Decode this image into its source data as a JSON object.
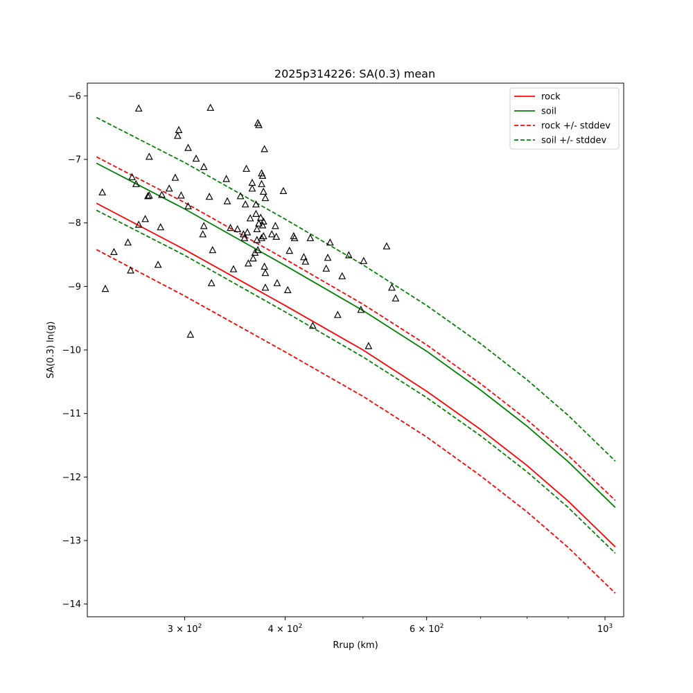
{
  "chart_data": {
    "type": "line",
    "title": "2025p314226: SA(0.3) mean",
    "xlabel": "Rrup (km)",
    "ylabel": "SA(0.3) ln(g)",
    "xscale": "log",
    "xlim": [
      227,
      1055
    ],
    "ylim": [
      -14.2,
      -5.8
    ],
    "x_ticks_major": [
      {
        "value": 300,
        "base": "3 × 10",
        "exp": "2"
      },
      {
        "value": 400,
        "base": "4 × 10",
        "exp": "2"
      },
      {
        "value": 600,
        "base": "6 × 10",
        "exp": "2"
      },
      {
        "value": 1000,
        "base": "10",
        "exp": "3"
      }
    ],
    "x_ticks_minor": [
      500,
      700,
      800,
      900
    ],
    "y_ticks": [
      {
        "value": -14,
        "label": "−14"
      },
      {
        "value": -13,
        "label": "−13"
      },
      {
        "value": -12,
        "label": "−12"
      },
      {
        "value": -11,
        "label": "−11"
      },
      {
        "value": -10,
        "label": "−10"
      },
      {
        "value": -9,
        "label": "−9"
      },
      {
        "value": -8,
        "label": "−8"
      },
      {
        "value": -7,
        "label": "−7"
      },
      {
        "value": -6,
        "label": "−6"
      }
    ],
    "grid": false,
    "legend": {
      "position": "top-right",
      "entries": [
        {
          "label": "rock",
          "color": "#ff0000",
          "style": "solid"
        },
        {
          "label": "soil",
          "color": "#008000",
          "style": "solid"
        },
        {
          "label": "rock +/- stddev",
          "color": "#ff0000",
          "style": "dashed"
        },
        {
          "label": "soil +/- stddev",
          "color": "#008000",
          "style": "dashed"
        }
      ]
    },
    "series": [
      {
        "name": "rock",
        "color": "#ff0000",
        "style": "solid",
        "x": [
          233,
          300,
          400,
          500,
          600,
          700,
          800,
          900,
          1030
        ],
        "y": [
          -7.69,
          -8.42,
          -9.3,
          -10.0,
          -10.65,
          -11.25,
          -11.82,
          -12.38,
          -13.1
        ]
      },
      {
        "name": "soil",
        "color": "#008000",
        "style": "solid",
        "x": [
          233,
          300,
          400,
          500,
          600,
          700,
          800,
          900,
          1030
        ],
        "y": [
          -7.06,
          -7.78,
          -8.67,
          -9.38,
          -10.02,
          -10.63,
          -11.2,
          -11.76,
          -12.48
        ]
      },
      {
        "name": "rock +/- stddev",
        "group": "rock-upper",
        "color": "#ff0000",
        "style": "dashed",
        "x": [
          233,
          300,
          400,
          500,
          600,
          700,
          800,
          900,
          1030
        ],
        "y": [
          -6.96,
          -7.68,
          -8.57,
          -9.28,
          -9.92,
          -10.53,
          -11.1,
          -11.66,
          -12.37
        ]
      },
      {
        "name": "rock +/- stddev",
        "group": "rock-lower",
        "color": "#ff0000",
        "style": "dashed",
        "x": [
          233,
          300,
          400,
          500,
          600,
          700,
          800,
          900,
          1030
        ],
        "y": [
          -8.42,
          -9.15,
          -10.03,
          -10.73,
          -11.37,
          -11.98,
          -12.55,
          -13.11,
          -13.83
        ]
      },
      {
        "name": "soil +/- stddev",
        "group": "soil-upper",
        "color": "#008000",
        "style": "dashed",
        "x": [
          233,
          300,
          400,
          500,
          600,
          700,
          800,
          900,
          1030
        ],
        "y": [
          -6.34,
          -7.05,
          -7.94,
          -8.66,
          -9.3,
          -9.9,
          -10.47,
          -11.03,
          -11.75
        ]
      },
      {
        "name": "soil +/- stddev",
        "group": "soil-lower",
        "color": "#008000",
        "style": "dashed",
        "x": [
          233,
          300,
          400,
          500,
          600,
          700,
          800,
          900,
          1030
        ],
        "y": [
          -7.8,
          -8.51,
          -9.4,
          -10.11,
          -10.75,
          -11.35,
          -11.92,
          -12.48,
          -13.2
        ]
      }
    ],
    "observations": {
      "marker": "open-triangle",
      "color": "#000000",
      "points": [
        [
          237,
          -7.52
        ],
        [
          239,
          -9.04
        ],
        [
          245,
          -8.46
        ],
        [
          255,
          -8.31
        ],
        [
          257,
          -8.75
        ],
        [
          258,
          -7.28
        ],
        [
          261,
          -7.39
        ],
        [
          263,
          -8.03
        ],
        [
          263,
          -6.2
        ],
        [
          268,
          -7.94
        ],
        [
          270,
          -7.58
        ],
        [
          271,
          -6.96
        ],
        [
          271,
          -7.57
        ],
        [
          278,
          -8.66
        ],
        [
          280,
          -8.07
        ],
        [
          281,
          -7.56
        ],
        [
          287,
          -7.46
        ],
        [
          292,
          -7.29
        ],
        [
          294,
          -6.63
        ],
        [
          295,
          -6.54
        ],
        [
          297,
          -7.57
        ],
        [
          303,
          -6.82
        ],
        [
          303,
          -7.74
        ],
        [
          305,
          -9.76
        ],
        [
          310,
          -6.99
        ],
        [
          316,
          -8.18
        ],
        [
          317,
          -8.05
        ],
        [
          317,
          -7.12
        ],
        [
          322,
          -7.59
        ],
        [
          323,
          -6.19
        ],
        [
          324,
          -8.95
        ],
        [
          325,
          -8.43
        ],
        [
          338,
          -7.31
        ],
        [
          339,
          -7.66
        ],
        [
          342,
          -8.08
        ],
        [
          345,
          -8.73
        ],
        [
          349,
          -8.1
        ],
        [
          352,
          -7.58
        ],
        [
          355,
          -8.18
        ],
        [
          356,
          -8.24
        ],
        [
          357,
          -7.71
        ],
        [
          358,
          -7.15
        ],
        [
          359,
          -8.15
        ],
        [
          360,
          -8.64
        ],
        [
          362,
          -7.93
        ],
        [
          364,
          -7.37
        ],
        [
          364,
          -7.46
        ],
        [
          365,
          -8.56
        ],
        [
          367,
          -8.47
        ],
        [
          368,
          -7.71
        ],
        [
          368,
          -7.86
        ],
        [
          369,
          -8.27
        ],
        [
          369,
          -8.1
        ],
        [
          370,
          -6.43
        ],
        [
          370,
          -8.43
        ],
        [
          371,
          -8.01
        ],
        [
          371,
          -6.46
        ],
        [
          373,
          -7.92
        ],
        [
          374,
          -8.24
        ],
        [
          374,
          -7.22
        ],
        [
          374,
          -7.39
        ],
        [
          375,
          -7.26
        ],
        [
          375,
          -8.04
        ],
        [
          376,
          -7.98
        ],
        [
          376,
          -8.21
        ],
        [
          376,
          -7.51
        ],
        [
          377,
          -6.84
        ],
        [
          377,
          -8.69
        ],
        [
          378,
          -9.02
        ],
        [
          378,
          -7.61
        ],
        [
          378,
          -8.79
        ],
        [
          385,
          -8.18
        ],
        [
          389,
          -8.05
        ],
        [
          390,
          -8.22
        ],
        [
          391,
          -8.95
        ],
        [
          398,
          -7.5
        ],
        [
          403,
          -9.06
        ],
        [
          405,
          -8.44
        ],
        [
          410,
          -8.21
        ],
        [
          411,
          -8.24
        ],
        [
          422,
          -8.54
        ],
        [
          424,
          -8.61
        ],
        [
          430,
          -8.24
        ],
        [
          433,
          -9.62
        ],
        [
          450,
          -8.72
        ],
        [
          452,
          -8.55
        ],
        [
          455,
          -8.31
        ],
        [
          465,
          -9.45
        ],
        [
          471,
          -8.84
        ],
        [
          480,
          -8.51
        ],
        [
          497,
          -9.37
        ],
        [
          501,
          -8.6
        ],
        [
          508,
          -9.94
        ],
        [
          535,
          -8.37
        ],
        [
          543,
          -9.02
        ],
        [
          549,
          -9.19
        ]
      ]
    }
  }
}
